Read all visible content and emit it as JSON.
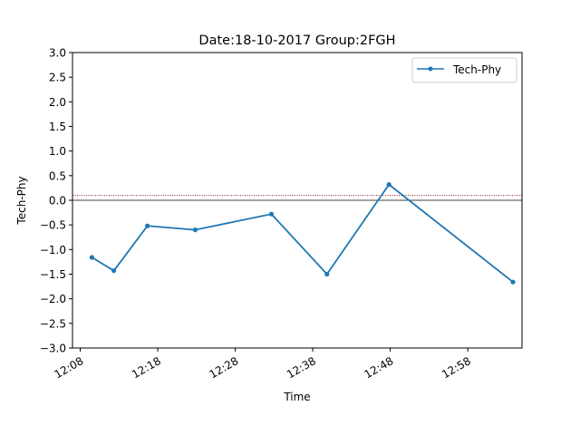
{
  "chart_data": {
    "type": "line",
    "title": "Date:18-10-2017 Group:2FGH",
    "xlabel": "Time",
    "ylabel": "Tech-Phy",
    "ylim": [
      -3.0,
      3.0
    ],
    "xlim": [
      "12:07:00",
      "13:05:00"
    ],
    "x_ticks": [
      "12:08",
      "12:18",
      "12:28",
      "12:38",
      "12:48",
      "12:58"
    ],
    "y_ticks": [
      "-3.0",
      "-2.5",
      "-2.0",
      "-1.5",
      "-1.0",
      "-0.5",
      "0.0",
      "0.5",
      "1.0",
      "1.5",
      "2.0",
      "2.5",
      "3.0"
    ],
    "grid": false,
    "legend_position": "top-right",
    "series": [
      {
        "name": "Tech-Phy",
        "color": "#1f77b4",
        "x": [
          "12:09:30",
          "12:12:20",
          "12:16:40",
          "12:22:50",
          "12:32:40",
          "12:39:50",
          "12:47:50",
          "13:03:50"
        ],
        "values": [
          -1.16,
          -1.43,
          -0.52,
          -0.6,
          -0.28,
          -1.5,
          0.32,
          -1.66
        ]
      }
    ],
    "reference_lines": [
      {
        "y": 0.0,
        "color": "#000000",
        "style": "solid"
      },
      {
        "y": 0.1,
        "color": "#8b0000",
        "style": "dotted"
      }
    ]
  }
}
